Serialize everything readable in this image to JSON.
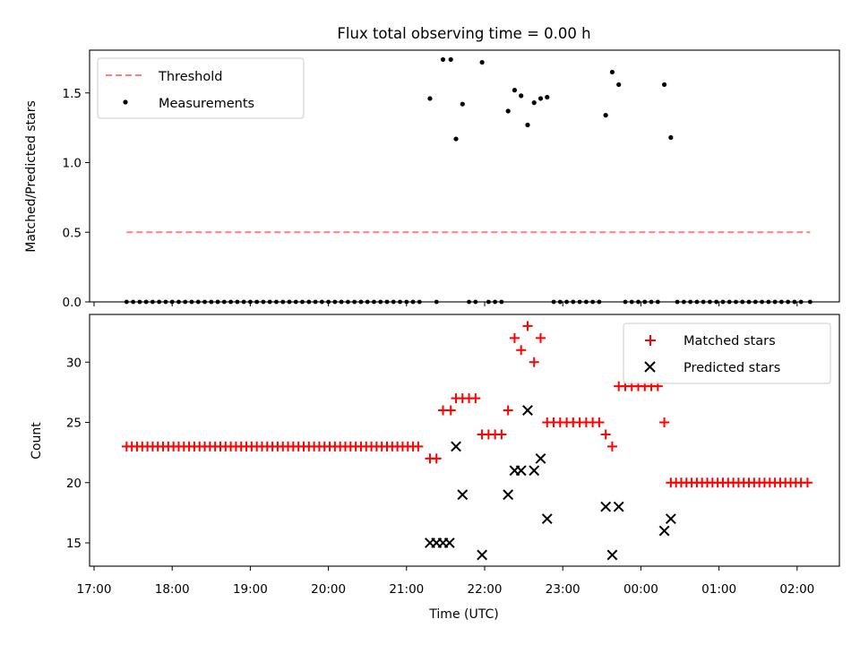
{
  "chart_data": [
    {
      "type": "scatter",
      "title": "Flux total observing time = 0.00 h",
      "xlabel": "",
      "ylabel": "Matched/Predicted stars",
      "ylim": [
        0,
        1.8
      ],
      "y_ticks": [
        "0.0",
        "0.5",
        "1.0",
        "1.5"
      ],
      "grid": false,
      "legend_position": "top-left",
      "series": [
        {
          "name": "Threshold",
          "style": "dashed-line",
          "color": "#ff7f7f",
          "x": [
            "17:25",
            "02:10"
          ],
          "values": [
            0.5,
            0.5
          ]
        },
        {
          "name": "Measurements",
          "style": "dots",
          "color": "#000000",
          "nonzero_points": [
            [
              "21:18",
              1.46
            ],
            [
              "21:28",
              1.74
            ],
            [
              "21:34",
              1.74
            ],
            [
              "21:38",
              1.17
            ],
            [
              "21:43",
              1.42
            ],
            [
              "21:58",
              1.72
            ],
            [
              "22:18",
              1.37
            ],
            [
              "22:23",
              1.52
            ],
            [
              "22:28",
              1.48
            ],
            [
              "22:33",
              1.27
            ],
            [
              "22:38",
              1.43
            ],
            [
              "22:43",
              1.46
            ],
            [
              "22:48",
              1.47
            ],
            [
              "23:33",
              1.34
            ],
            [
              "23:38",
              1.65
            ],
            [
              "23:43",
              1.56
            ],
            [
              "00:18",
              1.56
            ],
            [
              "00:23",
              1.18
            ]
          ],
          "zero_points": [
            "17:25",
            "17:30",
            "17:35",
            "17:40",
            "17:45",
            "17:50",
            "17:55",
            "18:00",
            "18:05",
            "18:10",
            "18:15",
            "18:20",
            "18:25",
            "18:30",
            "18:35",
            "18:40",
            "18:45",
            "18:50",
            "18:55",
            "19:00",
            "19:05",
            "19:10",
            "19:15",
            "19:20",
            "19:25",
            "19:30",
            "19:35",
            "19:40",
            "19:45",
            "19:50",
            "19:55",
            "20:00",
            "20:05",
            "20:10",
            "20:15",
            "20:20",
            "20:25",
            "20:30",
            "20:35",
            "20:40",
            "20:45",
            "20:50",
            "20:55",
            "21:00",
            "21:05",
            "21:10",
            "21:23",
            "21:48",
            "21:53",
            "22:03",
            "22:08",
            "22:13",
            "22:53",
            "22:58",
            "23:03",
            "23:08",
            "23:13",
            "23:18",
            "23:23",
            "23:28",
            "23:48",
            "23:53",
            "23:58",
            "00:03",
            "00:08",
            "00:13",
            "00:28",
            "00:33",
            "00:38",
            "00:43",
            "00:48",
            "00:53",
            "00:58",
            "01:03",
            "01:08",
            "01:13",
            "01:18",
            "01:23",
            "01:28",
            "01:33",
            "01:38",
            "01:43",
            "01:48",
            "01:53",
            "01:58",
            "02:03",
            "02:10"
          ]
        }
      ]
    },
    {
      "type": "scatter",
      "title": "",
      "xlabel": "Time (UTC)",
      "ylabel": "Count",
      "ylim": [
        13,
        33.8
      ],
      "y_ticks": [
        "15",
        "20",
        "25",
        "30"
      ],
      "x_ticks": [
        "17:00",
        "18:00",
        "19:00",
        "20:00",
        "21:00",
        "22:00",
        "23:00",
        "00:00",
        "01:00",
        "02:00"
      ],
      "grid": false,
      "legend_position": "top-right",
      "series": [
        {
          "name": "Matched stars",
          "marker": "plus",
          "color": "#ff0000",
          "points": [
            [
              "17:25",
              23
            ],
            [
              "17:29",
              23
            ],
            [
              "17:33",
              23
            ],
            [
              "17:37",
              23
            ],
            [
              "17:41",
              23
            ],
            [
              "17:45",
              23
            ],
            [
              "17:49",
              23
            ],
            [
              "17:53",
              23
            ],
            [
              "17:57",
              23
            ],
            [
              "18:01",
              23
            ],
            [
              "18:05",
              23
            ],
            [
              "18:09",
              23
            ],
            [
              "18:13",
              23
            ],
            [
              "18:17",
              23
            ],
            [
              "18:21",
              23
            ],
            [
              "18:25",
              23
            ],
            [
              "18:29",
              23
            ],
            [
              "18:33",
              23
            ],
            [
              "18:37",
              23
            ],
            [
              "18:41",
              23
            ],
            [
              "18:45",
              23
            ],
            [
              "18:49",
              23
            ],
            [
              "18:53",
              23
            ],
            [
              "18:57",
              23
            ],
            [
              "19:01",
              23
            ],
            [
              "19:05",
              23
            ],
            [
              "19:09",
              23
            ],
            [
              "19:13",
              23
            ],
            [
              "19:17",
              23
            ],
            [
              "19:21",
              23
            ],
            [
              "19:25",
              23
            ],
            [
              "19:29",
              23
            ],
            [
              "19:33",
              23
            ],
            [
              "19:37",
              23
            ],
            [
              "19:41",
              23
            ],
            [
              "19:45",
              23
            ],
            [
              "19:49",
              23
            ],
            [
              "19:53",
              23
            ],
            [
              "19:57",
              23
            ],
            [
              "20:01",
              23
            ],
            [
              "20:05",
              23
            ],
            [
              "20:09",
              23
            ],
            [
              "20:13",
              23
            ],
            [
              "20:17",
              23
            ],
            [
              "20:21",
              23
            ],
            [
              "20:25",
              23
            ],
            [
              "20:29",
              23
            ],
            [
              "20:33",
              23
            ],
            [
              "20:37",
              23
            ],
            [
              "20:41",
              23
            ],
            [
              "20:45",
              23
            ],
            [
              "20:49",
              23
            ],
            [
              "20:53",
              23
            ],
            [
              "20:57",
              23
            ],
            [
              "21:01",
              23
            ],
            [
              "21:05",
              23
            ],
            [
              "21:09",
              23
            ],
            [
              "21:18",
              22
            ],
            [
              "21:23",
              22
            ],
            [
              "21:28",
              26
            ],
            [
              "21:34",
              26
            ],
            [
              "21:38",
              27
            ],
            [
              "21:43",
              27
            ],
            [
              "21:48",
              27
            ],
            [
              "21:53",
              27
            ],
            [
              "21:58",
              24
            ],
            [
              "22:03",
              24
            ],
            [
              "22:08",
              24
            ],
            [
              "22:13",
              24
            ],
            [
              "22:18",
              26
            ],
            [
              "22:23",
              32
            ],
            [
              "22:28",
              31
            ],
            [
              "22:33",
              33
            ],
            [
              "22:38",
              30
            ],
            [
              "22:43",
              32
            ],
            [
              "22:48",
              25
            ],
            [
              "22:53",
              25
            ],
            [
              "22:58",
              25
            ],
            [
              "23:03",
              25
            ],
            [
              "23:08",
              25
            ],
            [
              "23:13",
              25
            ],
            [
              "23:18",
              25
            ],
            [
              "23:23",
              25
            ],
            [
              "23:28",
              25
            ],
            [
              "23:33",
              24
            ],
            [
              "23:38",
              23
            ],
            [
              "23:43",
              28
            ],
            [
              "23:48",
              28
            ],
            [
              "23:53",
              28
            ],
            [
              "23:58",
              28
            ],
            [
              "00:03",
              28
            ],
            [
              "00:08",
              28
            ],
            [
              "00:13",
              28
            ],
            [
              "00:18",
              25
            ],
            [
              "00:23",
              20
            ],
            [
              "00:27",
              20
            ],
            [
              "00:31",
              20
            ],
            [
              "00:35",
              20
            ],
            [
              "00:39",
              20
            ],
            [
              "00:43",
              20
            ],
            [
              "00:47",
              20
            ],
            [
              "00:51",
              20
            ],
            [
              "00:55",
              20
            ],
            [
              "00:59",
              20
            ],
            [
              "01:03",
              20
            ],
            [
              "01:07",
              20
            ],
            [
              "01:11",
              20
            ],
            [
              "01:15",
              20
            ],
            [
              "01:19",
              20
            ],
            [
              "01:23",
              20
            ],
            [
              "01:27",
              20
            ],
            [
              "01:31",
              20
            ],
            [
              "01:35",
              20
            ],
            [
              "01:39",
              20
            ],
            [
              "01:43",
              20
            ],
            [
              "01:47",
              20
            ],
            [
              "01:51",
              20
            ],
            [
              "01:55",
              20
            ],
            [
              "01:59",
              20
            ],
            [
              "02:03",
              20
            ],
            [
              "02:08",
              20
            ]
          ]
        },
        {
          "name": "Predicted stars",
          "marker": "x",
          "color": "#000000",
          "points": [
            [
              "21:18",
              15
            ],
            [
              "21:23",
              15
            ],
            [
              "21:28",
              15
            ],
            [
              "21:33",
              15
            ],
            [
              "21:38",
              23
            ],
            [
              "21:43",
              19
            ],
            [
              "21:58",
              14
            ],
            [
              "22:18",
              19
            ],
            [
              "22:23",
              21
            ],
            [
              "22:28",
              21
            ],
            [
              "22:33",
              26
            ],
            [
              "22:38",
              21
            ],
            [
              "22:43",
              22
            ],
            [
              "22:48",
              17
            ],
            [
              "23:33",
              18
            ],
            [
              "23:38",
              14
            ],
            [
              "23:43",
              18
            ],
            [
              "00:18",
              16
            ],
            [
              "00:23",
              17
            ]
          ]
        }
      ]
    }
  ]
}
